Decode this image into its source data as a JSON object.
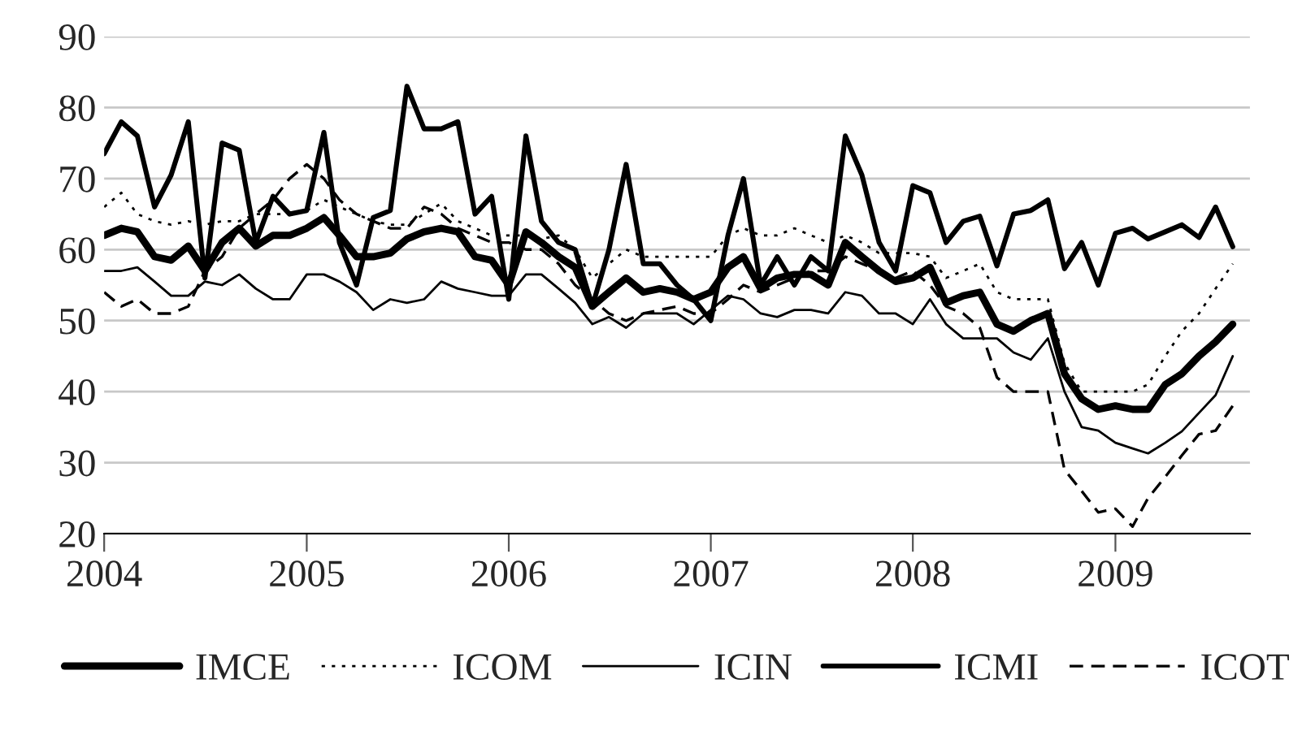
{
  "chart_data": {
    "type": "line",
    "x": [
      "2004-01",
      "2004-02",
      "2004-03",
      "2004-04",
      "2004-05",
      "2004-06",
      "2004-07",
      "2004-08",
      "2004-09",
      "2004-10",
      "2004-11",
      "2004-12",
      "2005-01",
      "2005-02",
      "2005-03",
      "2005-04",
      "2005-05",
      "2005-06",
      "2005-07",
      "2005-08",
      "2005-09",
      "2005-10",
      "2005-11",
      "2005-12",
      "2006-01",
      "2006-02",
      "2006-03",
      "2006-04",
      "2006-05",
      "2006-06",
      "2006-07",
      "2006-08",
      "2006-09",
      "2006-10",
      "2006-11",
      "2006-12",
      "2007-01",
      "2007-02",
      "2007-03",
      "2007-04",
      "2007-05",
      "2007-06",
      "2007-07",
      "2007-08",
      "2007-09",
      "2007-10",
      "2007-11",
      "2007-12",
      "2008-01",
      "2008-02",
      "2008-03",
      "2008-04",
      "2008-05",
      "2008-06",
      "2008-07",
      "2008-08",
      "2008-09",
      "2008-10",
      "2008-11",
      "2008-12",
      "2009-01",
      "2009-02",
      "2009-03",
      "2009-04",
      "2009-05",
      "2009-06",
      "2009-07",
      "2009-08"
    ],
    "series": [
      {
        "name": "IMCE",
        "color": "#000000",
        "line_style": "solid",
        "values": [
          62,
          63,
          62.5,
          59,
          58.5,
          60.5,
          57,
          61,
          63,
          60.5,
          62,
          62,
          63,
          64.5,
          62,
          59,
          59,
          59.5,
          61.5,
          62.5,
          63,
          62.5,
          59,
          58.5,
          55,
          62.5,
          61,
          59,
          57.5,
          52,
          54,
          56,
          54,
          54.5,
          54,
          53,
          54,
          57.5,
          59,
          54.5,
          56,
          56.5,
          56.5,
          55,
          61,
          59,
          57,
          55.5,
          56,
          57.5,
          52.5,
          53.5,
          54,
          49.5,
          48.5,
          50,
          51,
          42.5,
          39,
          37.5,
          38,
          37.5,
          37.5,
          41,
          42.5,
          45,
          47,
          49.5
        ]
      },
      {
        "name": "ICOM",
        "color": "#000000",
        "line_style": "dotted",
        "values": [
          66,
          68,
          65,
          64,
          63.5,
          64,
          63.5,
          64,
          64,
          65,
          65,
          65,
          65.5,
          67,
          66,
          65,
          64,
          63.5,
          63.5,
          65,
          66.5,
          64,
          63,
          62,
          62,
          62,
          61.5,
          62,
          60,
          56,
          58,
          60,
          59,
          59,
          59,
          59,
          59,
          62,
          63,
          62,
          62,
          63,
          62,
          61,
          62,
          61,
          59.5,
          59.5,
          59.5,
          59,
          56,
          57,
          58,
          54,
          53,
          53,
          53,
          44,
          40,
          40,
          40,
          40,
          41,
          45,
          48.5,
          51,
          54.5,
          58
        ]
      },
      {
        "name": "ICIN",
        "color": "#000000",
        "line_style": "solid",
        "values": [
          57,
          57,
          57.5,
          55.5,
          53.5,
          53.5,
          55.5,
          55,
          56.5,
          54.5,
          53,
          53,
          56.5,
          56.5,
          55.5,
          54,
          51.5,
          53,
          52.5,
          53,
          55.5,
          54.5,
          54,
          53.5,
          53.5,
          56.5,
          56.5,
          54.5,
          52.5,
          49.5,
          50.5,
          49,
          51,
          51,
          51,
          49.5,
          51.5,
          53.5,
          53,
          51,
          50.5,
          51.5,
          51.5,
          51,
          54,
          53.5,
          51,
          51,
          49.5,
          53,
          49.5,
          47.5,
          47.5,
          47.5,
          45.5,
          44.5,
          47.5,
          40,
          35,
          34.5,
          32.8,
          32,
          31.3,
          32.8,
          34.4,
          37,
          39.5,
          45
        ]
      },
      {
        "name": "ICMI",
        "color": "#000000",
        "line_style": "solid",
        "values": [
          73.5,
          78,
          76,
          66,
          70.5,
          78,
          56,
          75,
          74,
          61,
          67.5,
          65,
          65.5,
          76.5,
          61,
          55,
          64.5,
          65.5,
          83,
          77,
          77,
          78,
          65,
          67.5,
          53,
          76,
          64,
          61,
          60,
          52,
          60,
          72,
          58,
          58,
          55,
          53,
          50,
          62,
          70,
          55,
          59,
          55,
          59,
          57,
          76,
          70.5,
          61,
          57,
          69,
          68,
          61,
          64,
          64.7,
          57.7,
          65,
          65.5,
          67,
          57.3,
          61,
          55,
          62.3,
          63,
          61.5,
          62.5,
          63.5,
          61.7,
          66,
          60.4
        ]
      },
      {
        "name": "ICOT",
        "color": "#000000",
        "line_style": "dashed",
        "values": [
          54,
          52,
          53,
          51,
          51,
          52,
          57,
          59,
          63,
          65,
          67,
          70,
          72,
          70,
          67,
          65,
          64,
          63,
          63,
          66,
          65,
          63,
          62,
          61,
          61,
          60,
          60,
          58,
          55,
          53,
          51,
          50,
          51,
          51.5,
          52,
          51,
          51,
          53,
          55,
          54,
          55,
          56,
          57,
          57,
          59,
          58,
          57,
          56,
          57,
          55,
          52,
          51,
          49,
          42,
          40,
          40,
          40,
          29,
          26,
          23,
          23.5,
          21,
          25,
          28,
          31,
          34,
          34.5,
          38
        ]
      }
    ],
    "xlim": [
      "2004-01",
      "2009-09"
    ],
    "xticks": [
      {
        "value": "2004",
        "label": "2004"
      },
      {
        "value": "2005",
        "label": "2005"
      },
      {
        "value": "2006",
        "label": "2006"
      },
      {
        "value": "2007",
        "label": "2007"
      },
      {
        "value": "2008",
        "label": "2008"
      },
      {
        "value": "2009",
        "label": "2009"
      }
    ],
    "ylim": [
      20,
      90
    ],
    "yticks": [
      20,
      30,
      40,
      50,
      60,
      70,
      80,
      90
    ],
    "grid": "y",
    "legend": "bottom",
    "marker": "none"
  }
}
